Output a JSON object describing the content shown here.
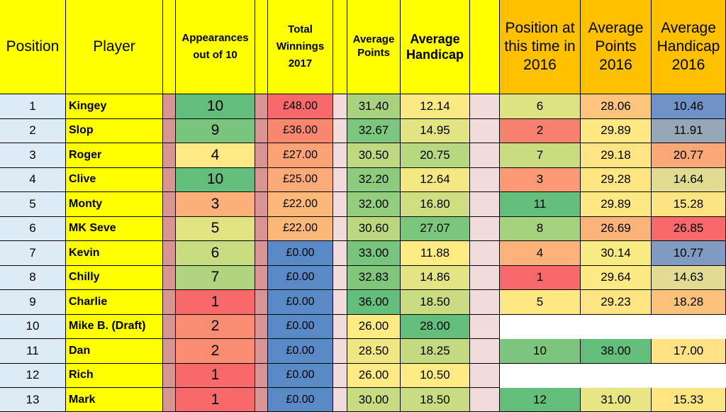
{
  "headers": {
    "position": "Position",
    "player": "Player",
    "appearances": "Appearances out of 10",
    "winnings": "Total Winnings 2017",
    "avg_points": "Average Points",
    "avg_handicap": "Average Handicap",
    "pos_2016": "Position at this time in 2016",
    "avg_points_2016": "Average Points 2016",
    "avg_handicap_2016": "Average Handicap 2016"
  },
  "colors": {
    "header_yellow": "#ffff00",
    "header_orange": "#ffc000",
    "position_bg": "#ddebf7",
    "name_bg": "#ffff00",
    "spacer_dark": "#d99594",
    "spacer_light": "#f2dcdb"
  },
  "rows": [
    {
      "position": "1",
      "player": "Kingey",
      "appearances": "10",
      "winnings": "£48.00",
      "avg_points": "31.40",
      "avg_handicap": "12.14",
      "pos_2016": "6",
      "avg_points_2016": "28.06",
      "avg_handicap_2016": "10.46"
    },
    {
      "position": "2",
      "player": "Slop",
      "appearances": "9",
      "winnings": "£36.00",
      "avg_points": "32.67",
      "avg_handicap": "14.95",
      "pos_2016": "2",
      "avg_points_2016": "29.89",
      "avg_handicap_2016": "11.91"
    },
    {
      "position": "3",
      "player": "Roger",
      "appearances": "4",
      "winnings": "£27.00",
      "avg_points": "30.50",
      "avg_handicap": "20.75",
      "pos_2016": "7",
      "avg_points_2016": "29.18",
      "avg_handicap_2016": "20.77"
    },
    {
      "position": "4",
      "player": "Clive",
      "appearances": "10",
      "winnings": "£25.00",
      "avg_points": "32.20",
      "avg_handicap": "12.64",
      "pos_2016": "3",
      "avg_points_2016": "29.28",
      "avg_handicap_2016": "14.64"
    },
    {
      "position": "5",
      "player": "Monty",
      "appearances": "3",
      "winnings": "£22.00",
      "avg_points": "32.00",
      "avg_handicap": "16.80",
      "pos_2016": "11",
      "avg_points_2016": "29.89",
      "avg_handicap_2016": "15.28"
    },
    {
      "position": "6",
      "player": "MK Seve",
      "appearances": "5",
      "winnings": "£22.00",
      "avg_points": "30.60",
      "avg_handicap": "27.07",
      "pos_2016": "8",
      "avg_points_2016": "26.69",
      "avg_handicap_2016": "26.85"
    },
    {
      "position": "7",
      "player": "Kevin",
      "appearances": "6",
      "winnings": "£0.00",
      "avg_points": "33.00",
      "avg_handicap": "11.88",
      "pos_2016": "4",
      "avg_points_2016": "30.14",
      "avg_handicap_2016": "10.77"
    },
    {
      "position": "8",
      "player": "Chilly",
      "appearances": "7",
      "winnings": "£0.00",
      "avg_points": "32.83",
      "avg_handicap": "14.86",
      "pos_2016": "1",
      "avg_points_2016": "29.64",
      "avg_handicap_2016": "14.63"
    },
    {
      "position": "9",
      "player": "Charlie",
      "appearances": "1",
      "winnings": "£0.00",
      "avg_points": "36.00",
      "avg_handicap": "18.50",
      "pos_2016": "5",
      "avg_points_2016": "29.23",
      "avg_handicap_2016": "18.28"
    },
    {
      "position": "10",
      "player": "Mike B. (Draft)",
      "appearances": "2",
      "winnings": "£0.00",
      "avg_points": "26.00",
      "avg_handicap": "28.00",
      "pos_2016": "",
      "avg_points_2016": "",
      "avg_handicap_2016": ""
    },
    {
      "position": "11",
      "player": "Dan",
      "appearances": "2",
      "winnings": "£0.00",
      "avg_points": "28.50",
      "avg_handicap": "18.25",
      "pos_2016": "10",
      "avg_points_2016": "38.00",
      "avg_handicap_2016": "17.00"
    },
    {
      "position": "12",
      "player": "Rich",
      "appearances": "1",
      "winnings": "£0.00",
      "avg_points": "26.00",
      "avg_handicap": "10.50",
      "pos_2016": "",
      "avg_points_2016": "",
      "avg_handicap_2016": ""
    },
    {
      "position": "13",
      "player": "Mark",
      "appearances": "1",
      "winnings": "£0.00",
      "avg_points": "30.00",
      "avg_handicap": "18.50",
      "pos_2016": "12",
      "avg_points_2016": "31.00",
      "avg_handicap_2016": "15.33"
    }
  ],
  "cell_colors": {
    "appearances": [
      "#63be7b",
      "#79c57d",
      "#ffe984",
      "#63be7b",
      "#fbb07a",
      "#e1e383",
      "#c8dc81",
      "#b0d480",
      "#f8696b",
      "#fa8c72",
      "#fa8c72",
      "#f8696b",
      "#f8696b"
    ],
    "winnings": [
      "#f8696b",
      "#f98770",
      "#fba276",
      "#fcab78",
      "#fcb879",
      "#fcb879",
      "#5a8ac6",
      "#5a8ac6",
      "#5a8ac6",
      "#5a8ac6",
      "#5a8ac6",
      "#5a8ac6",
      "#5a8ac6"
    ],
    "avg_points": [
      "#a8d27f",
      "#7dc67d",
      "#bfd981",
      "#8ccb7e",
      "#93cd7e",
      "#bbd881",
      "#78c47c",
      "#80c77d",
      "#63be7b",
      "#ffeb84",
      "#f0e683",
      "#ffeb84",
      "#c8db81"
    ],
    "avg_handicap": [
      "#fbe983",
      "#e2e383",
      "#b7d780",
      "#f3e884",
      "#d0de82",
      "#7cc57d",
      "#ffeb84",
      "#e3e483",
      "#c9dc82",
      "#63be7b",
      "#c4da81",
      "#ffeb84",
      "#c9dc82"
    ],
    "pos_2016": [
      "#dde283",
      "#f8806e",
      "#c9dc81",
      "#fb9a74",
      "#63be7b",
      "#a6d17f",
      "#fcb279",
      "#f8696b",
      "#ffe884",
      "",
      "#7dc57c",
      "",
      "#63be7b"
    ],
    "avg_points_2016": [
      "#fcc47c",
      "#fee883",
      "#ffe483",
      "#fee683",
      "#fee883",
      "#fbb37a",
      "#f9eb84",
      "#feea84",
      "#fee583",
      "",
      "#63be7b",
      "",
      "#e8e583"
    ],
    "avg_handicap_2016": [
      "#6f93c7",
      "#98a7b8",
      "#fba777",
      "#e1db92",
      "#fde482",
      "#f8696b",
      "#7f9bc2",
      "#e1db93",
      "#fcc27c",
      "",
      "#fee283",
      "",
      "#fde582"
    ]
  }
}
